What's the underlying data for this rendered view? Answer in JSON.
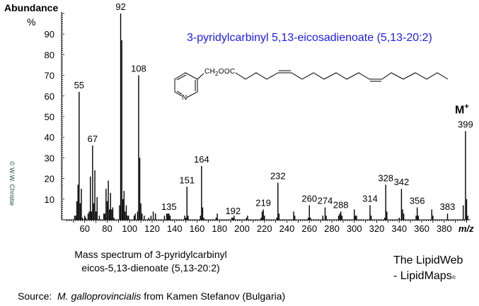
{
  "chart_data": {
    "type": "bar",
    "title": "3-pyridylcarbinyl 5,13-eicosadienoate (5,13-20:2)",
    "ylabel": "Abundance",
    "yunit": "%",
    "xlabel": "m/z",
    "xlim": [
      40,
      400
    ],
    "ylim": [
      0,
      100
    ],
    "xticks": [
      60,
      80,
      100,
      120,
      140,
      160,
      180,
      200,
      220,
      240,
      260,
      280,
      300,
      320,
      340,
      360,
      380
    ],
    "yticks": [
      10,
      20,
      30,
      40,
      50,
      60,
      70,
      80,
      90
    ],
    "molecular_ion_label": "M",
    "molecular_ion_sup": "+",
    "labeled_peaks": [
      55,
      67,
      92,
      108,
      135,
      151,
      164,
      192,
      219,
      232,
      260,
      274,
      288,
      314,
      328,
      342,
      356,
      383,
      399
    ],
    "peaks": [
      [
        51,
        2
      ],
      [
        52,
        2
      ],
      [
        53,
        9
      ],
      [
        54,
        17
      ],
      [
        55,
        62
      ],
      [
        56,
        8
      ],
      [
        57,
        15
      ],
      [
        58,
        1
      ],
      [
        60,
        2
      ],
      [
        61,
        1
      ],
      [
        63,
        3
      ],
      [
        64,
        4
      ],
      [
        65,
        21
      ],
      [
        66,
        4
      ],
      [
        67,
        36
      ],
      [
        68,
        8
      ],
      [
        69,
        24
      ],
      [
        70,
        4
      ],
      [
        71,
        11
      ],
      [
        73,
        2
      ],
      [
        77,
        3
      ],
      [
        78,
        3
      ],
      [
        79,
        15
      ],
      [
        80,
        9
      ],
      [
        81,
        19
      ],
      [
        82,
        5
      ],
      [
        83,
        13
      ],
      [
        84,
        5
      ],
      [
        85,
        6
      ],
      [
        86,
        1
      ],
      [
        91,
        7
      ],
      [
        92,
        100
      ],
      [
        93,
        87
      ],
      [
        94,
        10
      ],
      [
        95,
        14
      ],
      [
        96,
        4
      ],
      [
        97,
        7
      ],
      [
        98,
        2
      ],
      [
        99,
        2
      ],
      [
        104,
        2
      ],
      [
        105,
        3
      ],
      [
        107,
        4
      ],
      [
        108,
        70
      ],
      [
        109,
        30
      ],
      [
        110,
        8
      ],
      [
        111,
        3
      ],
      [
        113,
        2
      ],
      [
        117,
        1
      ],
      [
        119,
        2
      ],
      [
        121,
        4
      ],
      [
        123,
        3
      ],
      [
        131,
        2
      ],
      [
        133,
        3
      ],
      [
        134,
        3
      ],
      [
        135,
        3
      ],
      [
        136,
        2
      ],
      [
        149,
        2
      ],
      [
        150,
        1
      ],
      [
        151,
        16
      ],
      [
        152,
        2
      ],
      [
        163,
        2
      ],
      [
        164,
        26
      ],
      [
        165,
        6
      ],
      [
        166,
        1
      ],
      [
        177,
        1
      ],
      [
        178,
        3
      ],
      [
        191,
        1
      ],
      [
        192,
        1
      ],
      [
        193,
        2
      ],
      [
        204,
        1
      ],
      [
        205,
        2
      ],
      [
        217,
        1
      ],
      [
        218,
        4
      ],
      [
        219,
        5
      ],
      [
        220,
        2
      ],
      [
        231,
        1
      ],
      [
        232,
        18
      ],
      [
        233,
        3
      ],
      [
        246,
        4
      ],
      [
        247,
        2
      ],
      [
        259,
        1
      ],
      [
        260,
        7
      ],
      [
        261,
        1
      ],
      [
        272,
        2
      ],
      [
        274,
        6
      ],
      [
        275,
        2
      ],
      [
        286,
        2
      ],
      [
        287,
        3
      ],
      [
        288,
        4
      ],
      [
        289,
        2
      ],
      [
        300,
        5
      ],
      [
        301,
        2
      ],
      [
        302,
        2
      ],
      [
        314,
        7
      ],
      [
        315,
        2
      ],
      [
        327,
        1
      ],
      [
        328,
        17
      ],
      [
        329,
        4
      ],
      [
        340,
        1
      ],
      [
        342,
        15
      ],
      [
        343,
        5
      ],
      [
        344,
        3
      ],
      [
        355,
        2
      ],
      [
        356,
        6
      ],
      [
        357,
        2
      ],
      [
        369,
        5
      ],
      [
        370,
        2
      ],
      [
        383,
        3
      ],
      [
        397,
        7
      ],
      [
        399,
        43
      ],
      [
        400,
        10
      ],
      [
        401,
        2
      ]
    ],
    "bar_color": "#000000",
    "title_color": "#1a1aff"
  },
  "structure": {
    "ring_atom": "N",
    "linker": "CH",
    "linker_sub": "2",
    "linker_rest": "OOC"
  },
  "copyright": "© W.W. Christie",
  "caption": {
    "line1": "Mass spectrum of 3-pyridylcarbinyl",
    "line2": "eicos-5,13-dienoate (5,13-20:2)"
  },
  "branding": {
    "line1": "The LipidWeb",
    "line2": "- LipidMaps",
    "mark": "®"
  },
  "source": {
    "prefix": "Source:",
    "species": "M. galloprovincialis",
    "suffix": "from Kamen Stefanov (Bulgaria)"
  }
}
